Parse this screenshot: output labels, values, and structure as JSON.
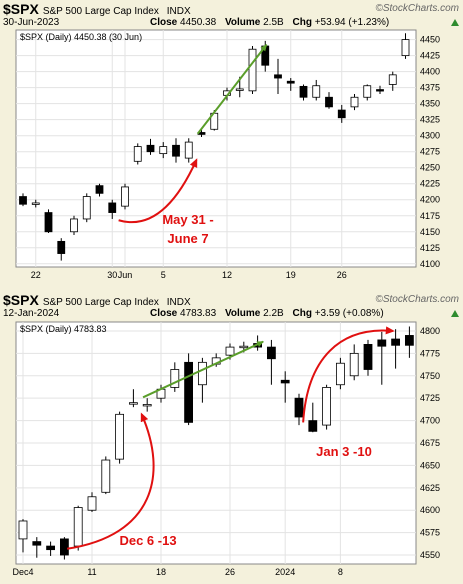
{
  "brand": "©StockCharts.com",
  "chart_data": [
    {
      "type": "candlestick",
      "symbol": "$SPX",
      "name": "S&P 500 Large Cap Index",
      "exchange": "INDX",
      "date": "30-Jun-2023",
      "close_label": "Close",
      "close": "4450.38",
      "volume_label": "Volume",
      "volume": "2.5B",
      "chg_label": "Chg",
      "chg": "+53.94 (+1.23%)",
      "legend": "$SPX (Daily) 4450.38 (30 Jun)",
      "ylim": [
        4095,
        4465
      ],
      "yticks": [
        4100,
        4125,
        4150,
        4175,
        4200,
        4225,
        4250,
        4275,
        4300,
        4325,
        4350,
        4375,
        4400,
        4425,
        4450
      ],
      "xticks": [
        {
          "label": "22",
          "index": 1
        },
        {
          "label": "30",
          "index": 7
        },
        {
          "label": "Jun",
          "index": 8
        },
        {
          "label": "5",
          "index": 11
        },
        {
          "label": "12",
          "index": 16
        },
        {
          "label": "19",
          "index": 21
        },
        {
          "label": "26",
          "index": 25
        }
      ],
      "candles": [
        {
          "o": 4205,
          "h": 4210,
          "l": 4190,
          "c": 4193
        },
        {
          "o": 4195,
          "h": 4200,
          "l": 4188,
          "c": 4195
        },
        {
          "o": 4180,
          "h": 4185,
          "l": 4148,
          "c": 4150
        },
        {
          "o": 4135,
          "h": 4140,
          "l": 4105,
          "c": 4116
        },
        {
          "o": 4150,
          "h": 4175,
          "l": 4145,
          "c": 4170
        },
        {
          "o": 4170,
          "h": 4210,
          "l": 4165,
          "c": 4205
        },
        {
          "o": 4222,
          "h": 4225,
          "l": 4205,
          "c": 4210
        },
        {
          "o": 4195,
          "h": 4200,
          "l": 4170,
          "c": 4180
        },
        {
          "o": 4190,
          "h": 4225,
          "l": 4185,
          "c": 4220
        },
        {
          "o": 4260,
          "h": 4288,
          "l": 4255,
          "c": 4283
        },
        {
          "o": 4285,
          "h": 4295,
          "l": 4270,
          "c": 4275
        },
        {
          "o": 4272,
          "h": 4290,
          "l": 4265,
          "c": 4283
        },
        {
          "o": 4285,
          "h": 4296,
          "l": 4258,
          "c": 4268
        },
        {
          "o": 4265,
          "h": 4296,
          "l": 4258,
          "c": 4290
        },
        {
          "o": 4305,
          "h": 4310,
          "l": 4298,
          "c": 4302
        },
        {
          "o": 4310,
          "h": 4340,
          "l": 4308,
          "c": 4335
        },
        {
          "o": 4363,
          "h": 4375,
          "l": 4355,
          "c": 4370
        },
        {
          "o": 4373,
          "h": 4392,
          "l": 4360,
          "c": 4373
        },
        {
          "o": 4370,
          "h": 4440,
          "l": 4365,
          "c": 4435
        },
        {
          "o": 4440,
          "h": 4448,
          "l": 4400,
          "c": 4410
        },
        {
          "o": 4395,
          "h": 4420,
          "l": 4365,
          "c": 4390
        },
        {
          "o": 4385,
          "h": 4390,
          "l": 4370,
          "c": 4382
        },
        {
          "o": 4377,
          "h": 4380,
          "l": 4355,
          "c": 4360
        },
        {
          "o": 4360,
          "h": 4387,
          "l": 4355,
          "c": 4378
        },
        {
          "o": 4360,
          "h": 4368,
          "l": 4342,
          "c": 4345
        },
        {
          "o": 4340,
          "h": 4348,
          "l": 4320,
          "c": 4328
        },
        {
          "o": 4345,
          "h": 4365,
          "l": 4340,
          "c": 4360
        },
        {
          "o": 4360,
          "h": 4380,
          "l": 4355,
          "c": 4378
        },
        {
          "o": 4372,
          "h": 4378,
          "l": 4365,
          "c": 4370
        },
        {
          "o": 4380,
          "h": 4400,
          "l": 4370,
          "c": 4395
        },
        {
          "o": 4425,
          "h": 4460,
          "l": 4420,
          "c": 4450
        }
      ],
      "annotation": {
        "lines": [
          "May 31 -",
          "June 7"
        ],
        "color": "#e01010"
      },
      "trend_color": "#5a9e2a"
    },
    {
      "type": "candlestick",
      "symbol": "$SPX",
      "name": "S&P 500 Large Cap Index",
      "exchange": "INDX",
      "date": "12-Jan-2024",
      "close_label": "Close",
      "close": "4783.83",
      "volume_label": "Volume",
      "volume": "2.2B",
      "chg_label": "Chg",
      "chg": "+3.59 (+0.08%)",
      "legend": "$SPX (Daily) 4783.83",
      "ylim": [
        4540,
        4810
      ],
      "yticks": [
        4550,
        4575,
        4600,
        4625,
        4650,
        4675,
        4700,
        4725,
        4750,
        4775,
        4800
      ],
      "xticks": [
        {
          "label": "Dec4",
          "index": 0
        },
        {
          "label": "11",
          "index": 5
        },
        {
          "label": "18",
          "index": 10
        },
        {
          "label": "26",
          "index": 15
        },
        {
          "label": "2024",
          "index": 19
        },
        {
          "label": "8",
          "index": 23
        }
      ],
      "candles": [
        {
          "o": 4568,
          "h": 4590,
          "l": 4553,
          "c": 4588
        },
        {
          "o": 4565,
          "h": 4570,
          "l": 4547,
          "c": 4561
        },
        {
          "o": 4560,
          "h": 4565,
          "l": 4549,
          "c": 4556
        },
        {
          "o": 4568,
          "h": 4570,
          "l": 4545,
          "c": 4550
        },
        {
          "o": 4560,
          "h": 4605,
          "l": 4555,
          "c": 4603
        },
        {
          "o": 4600,
          "h": 4620,
          "l": 4598,
          "c": 4615
        },
        {
          "o": 4620,
          "h": 4660,
          "l": 4618,
          "c": 4656
        },
        {
          "o": 4657,
          "h": 4710,
          "l": 4652,
          "c": 4707
        },
        {
          "o": 4720,
          "h": 4735,
          "l": 4715,
          "c": 4720
        },
        {
          "o": 4717,
          "h": 4725,
          "l": 4710,
          "c": 4718
        },
        {
          "o": 4725,
          "h": 4740,
          "l": 4720,
          "c": 4735
        },
        {
          "o": 4737,
          "h": 4765,
          "l": 4732,
          "c": 4757
        },
        {
          "o": 4765,
          "h": 4775,
          "l": 4695,
          "c": 4698
        },
        {
          "o": 4740,
          "h": 4770,
          "l": 4720,
          "c": 4765
        },
        {
          "o": 4763,
          "h": 4775,
          "l": 4760,
          "c": 4770
        },
        {
          "o": 4773,
          "h": 4786,
          "l": 4768,
          "c": 4782
        },
        {
          "o": 4782,
          "h": 4788,
          "l": 4776,
          "c": 4783
        },
        {
          "o": 4786,
          "h": 4795,
          "l": 4778,
          "c": 4782
        },
        {
          "o": 4782,
          "h": 4790,
          "l": 4740,
          "c": 4769
        },
        {
          "o": 4745,
          "h": 4755,
          "l": 4720,
          "c": 4742
        },
        {
          "o": 4725,
          "h": 4730,
          "l": 4695,
          "c": 4704
        },
        {
          "o": 4700,
          "h": 4720,
          "l": 4687,
          "c": 4688
        },
        {
          "o": 4695,
          "h": 4740,
          "l": 4690,
          "c": 4737
        },
        {
          "o": 4740,
          "h": 4770,
          "l": 4735,
          "c": 4764
        },
        {
          "o": 4750,
          "h": 4785,
          "l": 4745,
          "c": 4775
        },
        {
          "o": 4785,
          "h": 4790,
          "l": 4750,
          "c": 4757
        },
        {
          "o": 4790,
          "h": 4799,
          "l": 4740,
          "c": 4783
        },
        {
          "o": 4791,
          "h": 4802,
          "l": 4758,
          "c": 4784
        },
        {
          "o": 4795,
          "h": 4805,
          "l": 4770,
          "c": 4784
        }
      ],
      "annotations": [
        {
          "label": "Dec 6 -13",
          "color": "#e01010"
        },
        {
          "label": "Jan 3 -10",
          "color": "#e01010"
        }
      ],
      "trend_color": "#5a9e2a"
    }
  ]
}
